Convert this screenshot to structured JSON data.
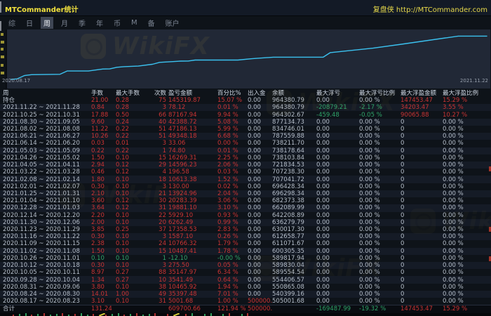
{
  "window": {
    "title": "MTCommander统计",
    "site": "复盘侠 http://MTCommander.com"
  },
  "tabs": {
    "items": [
      "综",
      "日",
      "周",
      "月",
      "季",
      "年",
      "币",
      "M",
      "备",
      "账户"
    ],
    "selected": "周"
  },
  "chart": {
    "start_label": "2020.08.17",
    "end_label": "2021.11.22",
    "watermark": "WikiFX"
  },
  "chart_data": {
    "type": "line",
    "title": "",
    "xlabel": "",
    "ylabel": "",
    "legend": false,
    "grid": false,
    "ylim": [
      500000,
      975000
    ],
    "x_start_label": "2020.08.17",
    "x_end_label": "2021.11.22",
    "line_color": "#3bc2f0",
    "series": [
      {
        "name": "余额",
        "points": [
          [
            "2020.08.17",
            500000.0
          ],
          [
            "2020.08.23",
            505001.68
          ],
          [
            "2020.08.30",
            540399.16
          ],
          [
            "2020.09.06",
            550865.08
          ],
          [
            "2020.10.04",
            554406.57
          ],
          [
            "2020.10.11",
            589554.54
          ],
          [
            "2020.10.18",
            589830.04
          ],
          [
            "2020.11.01",
            589817.94
          ],
          [
            "2020.11.08",
            600305.35
          ],
          [
            "2020.11.15",
            611071.67
          ],
          [
            "2020.11.22",
            612658.77
          ],
          [
            "2020.11.29",
            630017.3
          ],
          [
            "2020.12.06",
            636279.79
          ],
          [
            "2020.12.20",
            642208.89
          ],
          [
            "2021.01.03",
            662089.99
          ],
          [
            "2021.01.10",
            682373.38
          ],
          [
            "2021.01.31",
            696298.34
          ],
          [
            "2021.02.07",
            696428.34
          ],
          [
            "2021.02.14",
            707041.72
          ],
          [
            "2021.03.28",
            707238.3
          ],
          [
            "2021.04.11",
            721834.53
          ],
          [
            "2021.05.02",
            738103.84
          ],
          [
            "2021.05.09",
            738178.64
          ],
          [
            "2021.06.20",
            738211.7
          ],
          [
            "2021.06.27",
            787559.88
          ],
          [
            "2021.08.08",
            834746.01
          ],
          [
            "2021.09.05",
            877134.73
          ],
          [
            "2021.10.31",
            964302.67
          ],
          [
            "2021.11.28",
            964380.79
          ]
        ]
      }
    ]
  },
  "table": {
    "headers": [
      "周",
      "手数",
      "最大手数",
      "次数",
      "盈亏金额",
      "百分比%",
      "出入金",
      "余额",
      "最大浮亏",
      "最大浮亏比例",
      "最大浮盈金额",
      "最大浮盈比例"
    ],
    "rows": [
      [
        "持仓",
        "21.00",
        "0.28",
        "75",
        "145319.87",
        "15.07 %",
        "0.00",
        "964380.79",
        "0.00",
        "0.00 %",
        "147453.47",
        "15.29 %"
      ],
      [
        "2021.11.22 ~ 2021.11.28",
        "0.84",
        "0.28",
        "3",
        "78.12",
        "0.01 %",
        "0.00",
        "964380.79",
        "-20879.21",
        "-2.17 %",
        "34203.47",
        "3.55 %"
      ],
      [
        "2021.10.25 ~ 2021.10.31",
        "17.88",
        "0.50",
        "66",
        "87167.94",
        "9.94 %",
        "0.00",
        "964302.67",
        "-459.48",
        "-0.05 %",
        "90065.88",
        "10.27 %"
      ],
      [
        "2021.08.30 ~ 2021.09.05",
        "9.60",
        "0.24",
        "40",
        "42388.72",
        "5.08 %",
        "0.00",
        "877134.73",
        "0.00",
        "0.00 %",
        "0",
        "0.00 %"
      ],
      [
        "2021.08.02 ~ 2021.08.08",
        "11.22",
        "0.22",
        "51",
        "47186.13",
        "5.99 %",
        "0.00",
        "834746.01",
        "0.00",
        "0.00 %",
        "0",
        "0.00 %"
      ],
      [
        "2021.06.21 ~ 2021.06.27",
        "10.26",
        "0.22",
        "51",
        "49348.18",
        "6.68 %",
        "0.00",
        "787559.88",
        "0.00",
        "0.00 %",
        "0",
        "0.00 %"
      ],
      [
        "2021.06.14 ~ 2021.06.20",
        "0.03",
        "0.01",
        "3",
        "33.06",
        "0.00 %",
        "0.00",
        "738211.70",
        "0.00",
        "0.00 %",
        "0",
        "0.00 %"
      ],
      [
        "2021.05.03 ~ 2021.05.09",
        "0.22",
        "0.22",
        "1",
        "74.80",
        "0.01 %",
        "0.00",
        "738178.64",
        "0.00",
        "0.00 %",
        "0",
        "0.00 %"
      ],
      [
        "2021.04.26 ~ 2021.05.02",
        "1.50",
        "0.10",
        "15",
        "16269.31",
        "2.25 %",
        "0.00",
        "738103.84",
        "0.00",
        "0.00 %",
        "0",
        "0.00 %"
      ],
      [
        "2021.04.05 ~ 2021.04.11",
        "2.94",
        "0.12",
        "29",
        "14596.23",
        "2.06 %",
        "0.00",
        "721834.53",
        "0.00",
        "0.00 %",
        "0",
        "0.00 %"
      ],
      [
        "2021.03.22 ~ 2021.03.28",
        "0.46",
        "0.12",
        "4",
        "196.58",
        "0.03 %",
        "0.00",
        "707238.30",
        "0.00",
        "0.00 %",
        "0",
        "0.00 %"
      ],
      [
        "2021.02.08 ~ 2021.02.14",
        "1.80",
        "0.10",
        "18",
        "10613.38",
        "1.52 %",
        "0.00",
        "707041.72",
        "0.00",
        "0.00 %",
        "0",
        "0.00 %"
      ],
      [
        "2021.02.01 ~ 2021.02.07",
        "0.30",
        "0.10",
        "3",
        "130.00",
        "0.02 %",
        "0.00",
        "696428.34",
        "0.00",
        "0.00 %",
        "0",
        "0.00 %"
      ],
      [
        "2021.01.25 ~ 2021.01.31",
        "2.10",
        "0.10",
        "21",
        "13924.96",
        "2.04 %",
        "0.00",
        "696298.34",
        "0.00",
        "0.00 %",
        "0",
        "0.00 %"
      ],
      [
        "2021.01.04 ~ 2021.01.10",
        "3.60",
        "0.12",
        "30",
        "20283.39",
        "3.06 %",
        "0.00",
        "682373.38",
        "0.00",
        "0.00 %",
        "0",
        "0.00 %"
      ],
      [
        "2020.12.28 ~ 2021.01.03",
        "3.64",
        "0.12",
        "31",
        "19881.10",
        "3.10 %",
        "0.00",
        "662089.99",
        "0.00",
        "0.00 %",
        "0",
        "0.00 %"
      ],
      [
        "2020.12.14 ~ 2020.12.20",
        "2.20",
        "0.10",
        "22",
        "5929.10",
        "0.93 %",
        "0.00",
        "642208.89",
        "0.00",
        "0.00 %",
        "0",
        "0.00 %"
      ],
      [
        "2020.11.30 ~ 2020.12.06",
        "2.00",
        "0.10",
        "20",
        "6262.49",
        "0.99 %",
        "0.00",
        "636279.79",
        "0.00",
        "0.00 %",
        "0",
        "0.00 %"
      ],
      [
        "2020.11.23 ~ 2020.11.29",
        "3.85",
        "0.25",
        "37",
        "17358.53",
        "2.83 %",
        "0.00",
        "630017.30",
        "0.00",
        "0.00 %",
        "0",
        "0.00 %"
      ],
      [
        "2020.11.16 ~ 2020.11.22",
        "0.30",
        "0.10",
        "3",
        "1587.10",
        "0.26 %",
        "0.00",
        "612658.77",
        "0.00",
        "0.00 %",
        "0",
        "0.00 %"
      ],
      [
        "2020.11.09 ~ 2020.11.15",
        "2.38",
        "0.10",
        "24",
        "10766.32",
        "1.79 %",
        "0.00",
        "611071.67",
        "0.00",
        "0.00 %",
        "0",
        "0.00 %"
      ],
      [
        "2020.11.02 ~ 2020.11.08",
        "1.50",
        "0.10",
        "15",
        "10487.41",
        "1.78 %",
        "0.00",
        "600305.35",
        "0.00",
        "0.00 %",
        "0",
        "0.00 %"
      ],
      [
        "2020.10.26 ~ 2020.11.01",
        "0.10",
        "0.10",
        "1",
        "-12.10",
        "-0.00 %",
        "0.00",
        "589817.94",
        "0.00",
        "0.00 %",
        "0",
        "0.00 %"
      ],
      [
        "2020.10.12 ~ 2020.10.18",
        "0.30",
        "0.10",
        "3",
        "275.50",
        "0.05 %",
        "0.00",
        "589830.04",
        "0.00",
        "0.00 %",
        "0",
        "0.00 %"
      ],
      [
        "2020.10.05 ~ 2020.10.11",
        "8.97",
        "0.27",
        "88",
        "35147.97",
        "6.34 %",
        "0.00",
        "589554.54",
        "0.00",
        "0.00 %",
        "0",
        "0.00 %"
      ],
      [
        "2020.09.28 ~ 2020.10.04",
        "1.34",
        "0.27",
        "10",
        "3541.49",
        "0.64 %",
        "0.00",
        "554406.57",
        "0.00",
        "0.00 %",
        "0",
        "0.00 %"
      ],
      [
        "2020.08.31 ~ 2020.09.06",
        "3.80",
        "0.10",
        "38",
        "10465.92",
        "1.94 %",
        "0.00",
        "550865.08",
        "0.00",
        "0.00 %",
        "0",
        "0.00 %"
      ],
      [
        "2020.08.24 ~ 2020.08.30",
        "14.01",
        "1.00",
        "49",
        "35397.48",
        "7.01 %",
        "0.00",
        "540399.16",
        "0.00",
        "0.00 %",
        "0",
        "0.00 %"
      ],
      [
        "2020.08.17 ~ 2020.08.23",
        "3.10",
        "0.10",
        "31",
        "5001.68",
        "1.00 %",
        "500000.00",
        "505001.68",
        "0.00",
        "0.00 %",
        "0",
        "0.00 %"
      ],
      [
        "合计",
        "131.24",
        "",
        "",
        "609700.66",
        "121.94 %",
        "500000.00",
        "",
        "-169487.99",
        "-19.32 %",
        "147453.47",
        "15.29 %"
      ]
    ]
  },
  "colors": {
    "gain_red": "#cb3434",
    "loss_green": "#2fa56a",
    "line_cyan": "#3bc2f0",
    "title_yellow": "#f2e23d"
  }
}
